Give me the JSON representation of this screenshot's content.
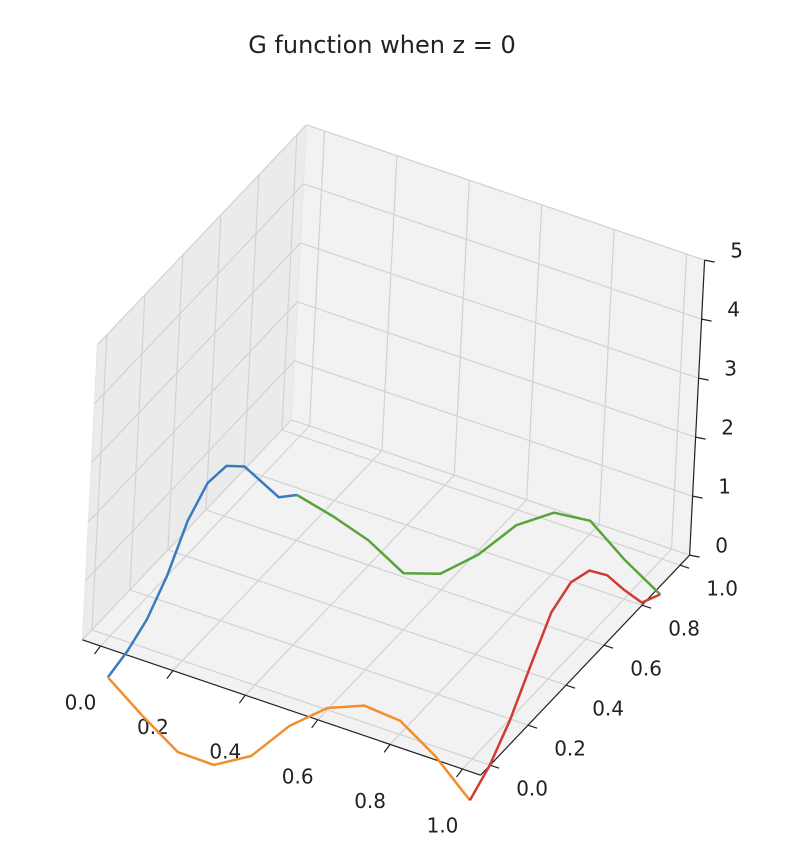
{
  "chart_data": {
    "type": "line3d",
    "title": "G function when z = 0",
    "xlim": [
      -0.05,
      1.05
    ],
    "ylim": [
      -0.05,
      1.05
    ],
    "zlim": [
      0,
      5
    ],
    "xticks": [
      {
        "value": 0,
        "label": "0.0"
      },
      {
        "value": 0.2,
        "label": "0.2"
      },
      {
        "value": 0.4,
        "label": "0.4"
      },
      {
        "value": 0.6,
        "label": "0.6"
      },
      {
        "value": 0.8,
        "label": "0.8"
      },
      {
        "value": 1,
        "label": "1.0"
      }
    ],
    "yticks": [
      {
        "value": 0,
        "label": "0.0"
      },
      {
        "value": 0.2,
        "label": "0.2"
      },
      {
        "value": 0.4,
        "label": "0.4"
      },
      {
        "value": 0.6,
        "label": "0.6"
      },
      {
        "value": 0.8,
        "label": "0.8"
      },
      {
        "value": 1,
        "label": "1.0"
      }
    ],
    "zticks": [
      0,
      1,
      2,
      3,
      4,
      5
    ],
    "grid": true,
    "series": [
      {
        "color": "#3a7bbf",
        "x": [
          0,
          0,
          0,
          0,
          0,
          0,
          0,
          0,
          0,
          0,
          0
        ],
        "y": [
          0,
          0.1,
          0.2,
          0.3,
          0.4,
          0.5,
          0.6,
          0.7,
          0.8,
          0.9,
          1
        ],
        "values": [
          -0.7,
          -0.6,
          -0.4,
          0,
          0.6,
          0.9,
          0.85,
          0.5,
          -0.1,
          -0.7,
          -1.0
        ]
      },
      {
        "color": "#f28e2b",
        "x": [
          0,
          0.1,
          0.2,
          0.3,
          0.4,
          0.5,
          0.6,
          0.7,
          0.8,
          0.9,
          1
        ],
        "y": [
          0,
          0,
          0,
          0,
          0,
          0,
          0,
          0,
          0,
          0,
          0
        ],
        "values": [
          -0.7,
          -1.15,
          -1.55,
          -1.56,
          -1.2,
          -0.48,
          0.03,
          0.28,
          0.23,
          -0.16,
          -0.7
        ]
      },
      {
        "color": "#59a33a",
        "x": [
          0,
          0.1,
          0.2,
          0.3,
          0.4,
          0.5,
          0.6,
          0.7,
          0.8,
          0.9,
          1
        ],
        "y": [
          1,
          1,
          1,
          1,
          1,
          1,
          1,
          1,
          1,
          1,
          1
        ],
        "values": [
          -1.0,
          -1.15,
          -1.35,
          -1.7,
          -1.5,
          -0.97,
          -0.26,
          0.16,
          0.23,
          -0.23,
          -0.6
        ]
      },
      {
        "color": "#d03c33",
        "x": [
          1,
          1,
          1,
          1,
          1,
          1,
          1,
          1,
          1,
          1,
          1
        ],
        "y": [
          0,
          0.1,
          0.2,
          0.3,
          0.4,
          0.5,
          0.6,
          0.7,
          0.8,
          0.9,
          1
        ],
        "values": [
          -0.7,
          -0.45,
          -0.02,
          0.57,
          1.13,
          1.3,
          1.16,
          0.74,
          0.15,
          -0.4,
          -0.6
        ]
      }
    ]
  }
}
